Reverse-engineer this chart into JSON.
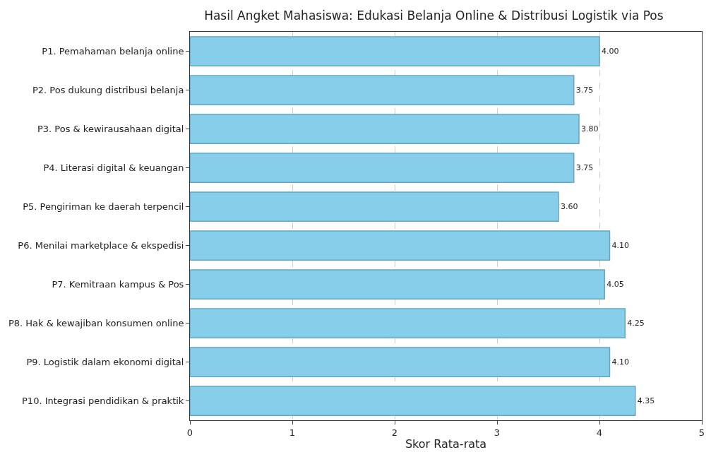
{
  "chart_data": {
    "type": "bar",
    "orientation": "horizontal",
    "title": "Hasil Angket Mahasiswa: Edukasi Belanja Online & Distribusi Logistik via Pos",
    "xlabel": "Skor Rata-rata",
    "categories": [
      "P1. Pemahaman belanja online",
      "P2. Pos dukung distribusi belanja",
      "P3. Pos & kewirausahaan digital",
      "P4. Literasi digital & keuangan",
      "P5. Pengiriman ke daerah terpencil",
      "P6. Menilai marketplace & ekspedisi",
      "P7. Kemitraan kampus & Pos",
      "P8. Hak & kewajiban konsumen online",
      "P9. Logistik dalam ekonomi digital",
      "P10. Integrasi pendidikan & praktik"
    ],
    "values": [
      4.0,
      3.75,
      3.8,
      3.75,
      3.6,
      4.1,
      4.05,
      4.25,
      4.1,
      4.35
    ],
    "value_labels": [
      "4.00",
      "3.75",
      "3.80",
      "3.75",
      "3.60",
      "4.10",
      "4.05",
      "4.25",
      "4.10",
      "4.35"
    ],
    "color": "#87ceeb",
    "xlim": [
      0,
      5
    ],
    "xticks": [
      0,
      1,
      2,
      3,
      4,
      5
    ],
    "grid": "x"
  }
}
